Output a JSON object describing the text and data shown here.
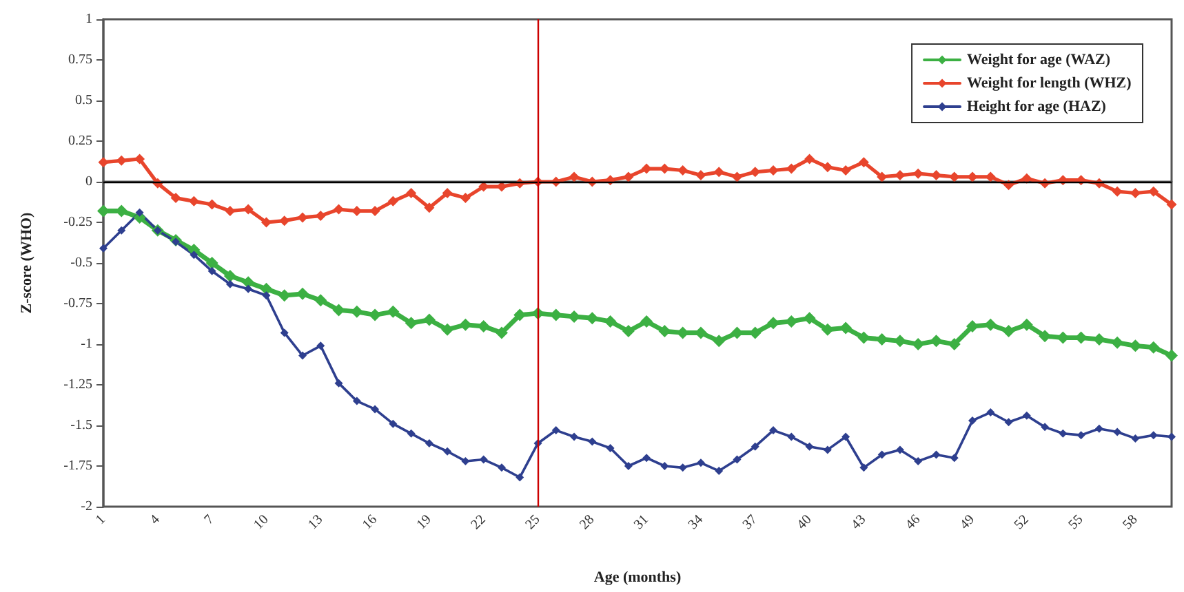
{
  "chart_data": {
    "type": "line",
    "xlabel": "Age (months)",
    "ylabel": "Z-score (WHO)",
    "categories": [
      "1",
      null,
      null,
      "4",
      null,
      null,
      "7",
      null,
      null,
      "10",
      null,
      null,
      "13",
      null,
      null,
      "16",
      null,
      null,
      "19",
      null,
      null,
      "22",
      null,
      null,
      "25",
      null,
      null,
      "28",
      null,
      null,
      "31",
      null,
      null,
      "34",
      null,
      null,
      "37",
      null,
      null,
      "40",
      null,
      null,
      "43",
      null,
      null,
      "46",
      null,
      null,
      "49",
      null,
      null,
      "52",
      null,
      null,
      "55",
      null,
      null,
      "58",
      null,
      null
    ],
    "series": [
      {
        "name": "Weight for age (WAZ)",
        "color": "#3cb043",
        "values": [
          -0.18,
          -0.18,
          -0.22,
          -0.3,
          -0.36,
          -0.42,
          -0.5,
          -0.58,
          -0.62,
          -0.66,
          -0.7,
          -0.69,
          -0.73,
          -0.79,
          -0.8,
          -0.82,
          -0.8,
          -0.87,
          -0.85,
          -0.91,
          -0.88,
          -0.89,
          -0.93,
          -0.82,
          -0.81,
          -0.82,
          -0.83,
          -0.84,
          -0.86,
          -0.92,
          -0.86,
          -0.92,
          -0.93,
          -0.93,
          -0.98,
          -0.93,
          -0.93,
          -0.87,
          -0.86,
          -0.84,
          -0.91,
          -0.9,
          -0.96,
          -0.97,
          -0.98,
          -1.0,
          -0.98,
          -1.0,
          -0.89,
          -0.88,
          -0.92,
          -0.88,
          -0.95,
          -0.96,
          -0.96,
          -0.97,
          -0.99,
          -1.01,
          -1.02,
          -1.07
        ]
      },
      {
        "name": "Weight for length (WHZ)",
        "color": "#e8452c",
        "values": [
          0.12,
          0.13,
          0.14,
          -0.01,
          -0.1,
          -0.12,
          -0.14,
          -0.18,
          -0.17,
          -0.25,
          -0.24,
          -0.22,
          -0.21,
          -0.17,
          -0.18,
          -0.18,
          -0.12,
          -0.07,
          -0.16,
          -0.07,
          -0.1,
          -0.03,
          -0.03,
          -0.01,
          0.0,
          0.0,
          0.03,
          0.0,
          0.01,
          0.03,
          0.08,
          0.08,
          0.07,
          0.04,
          0.06,
          0.03,
          0.06,
          0.07,
          0.08,
          0.14,
          0.09,
          0.07,
          0.12,
          0.03,
          0.04,
          0.05,
          0.04,
          0.03,
          0.03,
          0.03,
          -0.02,
          0.02,
          -0.01,
          0.01,
          0.01,
          -0.01,
          -0.06,
          -0.07,
          -0.06,
          -0.14
        ]
      },
      {
        "name": "Height for age (HAZ)",
        "color": "#2e3f8f",
        "values": [
          -0.41,
          -0.3,
          -0.19,
          -0.3,
          -0.37,
          -0.45,
          -0.55,
          -0.63,
          -0.66,
          -0.7,
          -0.93,
          -1.07,
          -1.01,
          -1.24,
          -1.35,
          -1.4,
          -1.49,
          -1.55,
          -1.61,
          -1.66,
          -1.72,
          -1.71,
          -1.76,
          -1.82,
          -1.61,
          -1.53,
          -1.57,
          -1.6,
          -1.64,
          -1.75,
          -1.7,
          -1.75,
          -1.76,
          -1.73,
          -1.78,
          -1.71,
          -1.63,
          -1.53,
          -1.57,
          -1.63,
          -1.65,
          -1.57,
          -1.76,
          -1.68,
          -1.65,
          -1.72,
          -1.68,
          -1.7,
          -1.47,
          -1.42,
          -1.48,
          -1.44,
          -1.51,
          -1.55,
          -1.56,
          -1.52,
          -1.54,
          -1.58,
          -1.56,
          -1.57
        ]
      }
    ],
    "ylim": [
      -2,
      1
    ],
    "yticks": [
      -2,
      -1.75,
      -1.5,
      -1.25,
      -1,
      -0.75,
      -0.5,
      -0.25,
      0,
      0.25,
      0.5,
      0.75,
      1
    ],
    "ref_lines": [
      {
        "axis": "y",
        "value": 0,
        "color": "#000000"
      },
      {
        "axis": "x",
        "value": "25",
        "color": "#cc0000"
      }
    ],
    "grid": false,
    "legend": "top right",
    "marker": "diamond",
    "line_style": "solid"
  }
}
